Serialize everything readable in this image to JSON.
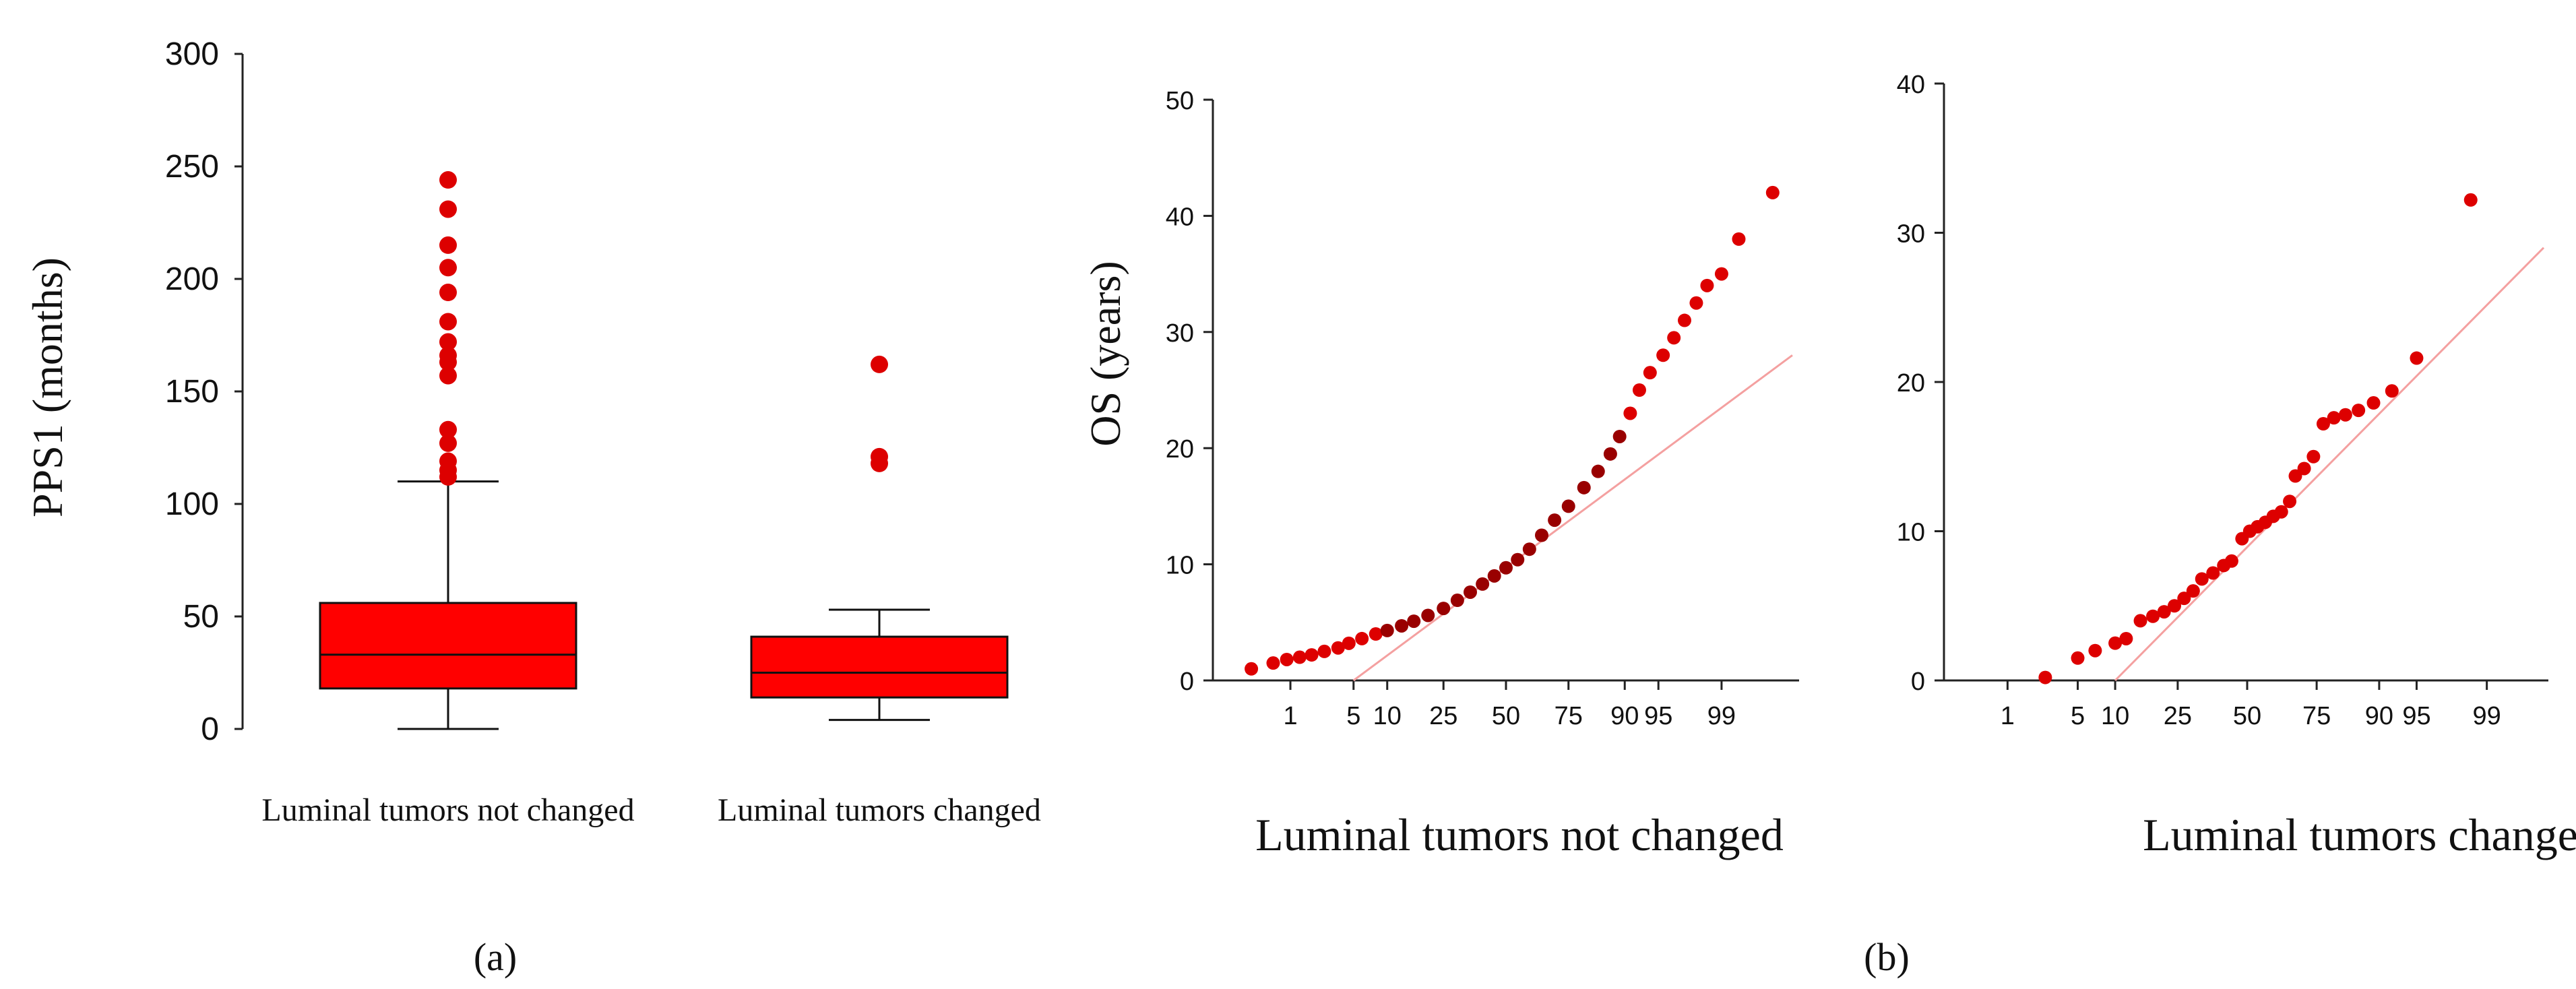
{
  "colors": {
    "box": "#ff0000",
    "point": "#dd0000",
    "point_dark": "#990000",
    "refline": "#f4a0a0",
    "axis": "#222222"
  },
  "chart_data": [
    {
      "type": "box",
      "panel_label": "(a)",
      "ylabel": "PPS1 (months)",
      "ylim": [
        0,
        300
      ],
      "yticks": [
        0,
        50,
        100,
        150,
        200,
        250,
        300
      ],
      "categories": [
        "Luminal tumors not changed",
        "Luminal tumors changed"
      ],
      "boxes": [
        {
          "name": "Luminal tumors not changed",
          "min": 0,
          "q1": 18,
          "median": 33,
          "q3": 56,
          "max": 110,
          "outliers": [
            112,
            115,
            119,
            127,
            133,
            157,
            163,
            166,
            172,
            181,
            194,
            205,
            215,
            231,
            244
          ]
        },
        {
          "name": "Luminal tumors changed",
          "min": 4,
          "q1": 14,
          "median": 25,
          "q3": 41,
          "max": 53,
          "outliers": [
            118,
            121,
            162
          ]
        }
      ]
    },
    {
      "type": "scatter",
      "subtype": "normal-probability",
      "ylabel": "OS (years)",
      "xlabel": "Luminal tumors not changed",
      "ylim": [
        0,
        50
      ],
      "yticks": [
        0,
        10,
        20,
        30,
        40,
        50
      ],
      "xtick_labels": [
        "1",
        "5",
        "10",
        "25",
        "50",
        "75",
        "90",
        "95",
        "99"
      ],
      "xtick_percentiles": [
        1,
        5,
        10,
        25,
        50,
        75,
        90,
        95,
        99
      ],
      "xlim_percentiles": [
        0.1,
        99.9
      ],
      "reference_line": {
        "p1": 5,
        "v1": 0,
        "p2": 99.9,
        "v2": 28
      },
      "points": [
        [
          0.3,
          1
        ],
        [
          0.6,
          1.5
        ],
        [
          0.9,
          1.8
        ],
        [
          1.3,
          2
        ],
        [
          1.8,
          2.2
        ],
        [
          2.5,
          2.5
        ],
        [
          3.5,
          2.8
        ],
        [
          4.5,
          3.2
        ],
        [
          6,
          3.6
        ],
        [
          8,
          4
        ],
        [
          10,
          4.3
        ],
        [
          13,
          4.7
        ],
        [
          16,
          5.1
        ],
        [
          20,
          5.6
        ],
        [
          25,
          6.2
        ],
        [
          30,
          6.9
        ],
        [
          35,
          7.6
        ],
        [
          40,
          8.3
        ],
        [
          45,
          9
        ],
        [
          50,
          9.7
        ],
        [
          55,
          10.4
        ],
        [
          60,
          11.3
        ],
        [
          65,
          12.5
        ],
        [
          70,
          13.8
        ],
        [
          75,
          15
        ],
        [
          80,
          16.6
        ],
        [
          84,
          18
        ],
        [
          87,
          19.5
        ],
        [
          89,
          21
        ],
        [
          91,
          23
        ],
        [
          92.5,
          25
        ],
        [
          94,
          26.5
        ],
        [
          95.5,
          28
        ],
        [
          96.5,
          29.5
        ],
        [
          97.3,
          31
        ],
        [
          98,
          32.5
        ],
        [
          98.5,
          34
        ],
        [
          99,
          35
        ],
        [
          99.4,
          38
        ],
        [
          99.8,
          42
        ]
      ]
    },
    {
      "type": "scatter",
      "subtype": "normal-probability",
      "xlabel": "Luminal tumors changed",
      "ylim": [
        0,
        40
      ],
      "yticks": [
        0,
        10,
        20,
        30,
        40
      ],
      "xtick_labels": [
        "1",
        "5",
        "10",
        "25",
        "50",
        "75",
        "90",
        "95",
        "99"
      ],
      "xtick_percentiles": [
        1,
        5,
        10,
        25,
        50,
        75,
        90,
        95,
        99
      ],
      "xlim_percentiles": [
        0.2,
        99.8
      ],
      "reference_line": {
        "p1": 10,
        "v1": 0,
        "p2": 99.8,
        "v2": 29
      },
      "points": [
        [
          2.5,
          0.2
        ],
        [
          5,
          1.5
        ],
        [
          7,
          2
        ],
        [
          10,
          2.5
        ],
        [
          12,
          2.8
        ],
        [
          15,
          4
        ],
        [
          18,
          4.3
        ],
        [
          21,
          4.6
        ],
        [
          24,
          5
        ],
        [
          27,
          5.5
        ],
        [
          30,
          6
        ],
        [
          33,
          6.8
        ],
        [
          37,
          7.2
        ],
        [
          41,
          7.7
        ],
        [
          44,
          8
        ],
        [
          48,
          9.5
        ],
        [
          51,
          10
        ],
        [
          54,
          10.3
        ],
        [
          57,
          10.6
        ],
        [
          60,
          11
        ],
        [
          63,
          11.3
        ],
        [
          66,
          12
        ],
        [
          68,
          13.7
        ],
        [
          71,
          14.2
        ],
        [
          74,
          15
        ],
        [
          77,
          17.2
        ],
        [
          80,
          17.6
        ],
        [
          83,
          17.8
        ],
        [
          86,
          18.1
        ],
        [
          89,
          18.6
        ],
        [
          92,
          19.4
        ],
        [
          95,
          21.6
        ],
        [
          98.5,
          32.2
        ]
      ]
    }
  ],
  "panel_b_label": "(b)"
}
